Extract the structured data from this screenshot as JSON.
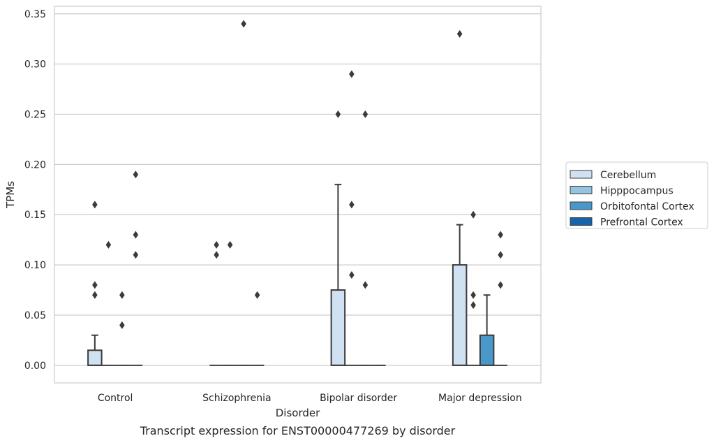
{
  "chart_data": {
    "type": "box",
    "title": "",
    "caption": "Transcript expression for ENST00000477269 by disorder",
    "xlabel": "Disorder",
    "ylabel": "TPMs",
    "ylim": [
      -0.0175,
      0.3575
    ],
    "yticks": [
      0.0,
      0.05,
      0.1,
      0.15,
      0.2,
      0.25,
      0.3,
      0.35
    ],
    "ytick_labels": [
      "0.00",
      "0.05",
      "0.10",
      "0.15",
      "0.20",
      "0.25",
      "0.30",
      "0.35"
    ],
    "grid": "horizontal",
    "legend_position": "right",
    "categories": [
      "Control",
      "Schizophrenia",
      "Bipolar disorder",
      "Major depression"
    ],
    "series": [
      {
        "name": "Cerebellum",
        "color": "#d0e1f2",
        "boxes": [
          {
            "q1": 0.0,
            "median": 0.0,
            "q3": 0.015,
            "whisker_low": 0.0,
            "whisker_high": 0.03,
            "outliers": [
              0.16,
              0.08,
              0.07
            ]
          },
          {
            "q1": 0.0,
            "median": 0.0,
            "q3": 0.0,
            "whisker_low": 0.0,
            "whisker_high": 0.0,
            "outliers": [
              0.12,
              0.11
            ]
          },
          {
            "q1": 0.0,
            "median": 0.0,
            "q3": 0.075,
            "whisker_low": 0.0,
            "whisker_high": 0.18,
            "outliers": [
              0.25
            ]
          },
          {
            "q1": 0.0,
            "median": 0.0,
            "q3": 0.1,
            "whisker_low": 0.0,
            "whisker_high": 0.14,
            "outliers": [
              0.33
            ]
          }
        ]
      },
      {
        "name": "Hipppocampus",
        "color": "#94c4df",
        "boxes": [
          {
            "q1": 0.0,
            "median": 0.0,
            "q3": 0.0,
            "whisker_low": 0.0,
            "whisker_high": 0.0,
            "outliers": [
              0.12
            ]
          },
          {
            "q1": 0.0,
            "median": 0.0,
            "q3": 0.0,
            "whisker_low": 0.0,
            "whisker_high": 0.0,
            "outliers": [
              0.12
            ]
          },
          {
            "q1": 0.0,
            "median": 0.0,
            "q3": 0.0,
            "whisker_low": 0.0,
            "whisker_high": 0.0,
            "outliers": [
              0.29,
              0.16,
              0.09
            ]
          },
          {
            "q1": 0.0,
            "median": 0.0,
            "q3": 0.0,
            "whisker_low": 0.0,
            "whisker_high": 0.0,
            "outliers": [
              0.15,
              0.07,
              0.06
            ]
          }
        ]
      },
      {
        "name": "Orbitofontal Cortex",
        "color": "#4a98c9",
        "boxes": [
          {
            "q1": 0.0,
            "median": 0.0,
            "q3": 0.0,
            "whisker_low": 0.0,
            "whisker_high": 0.0,
            "outliers": [
              0.07,
              0.04
            ]
          },
          {
            "q1": 0.0,
            "median": 0.0,
            "q3": 0.0,
            "whisker_low": 0.0,
            "whisker_high": 0.0,
            "outliers": [
              0.34
            ]
          },
          {
            "q1": 0.0,
            "median": 0.0,
            "q3": 0.0,
            "whisker_low": 0.0,
            "whisker_high": 0.0,
            "outliers": [
              0.25,
              0.08
            ]
          },
          {
            "q1": 0.0,
            "median": 0.0,
            "q3": 0.03,
            "whisker_low": 0.0,
            "whisker_high": 0.07,
            "outliers": []
          }
        ]
      },
      {
        "name": "Prefrontal Cortex",
        "color": "#1764ab",
        "boxes": [
          {
            "q1": 0.0,
            "median": 0.0,
            "q3": 0.0,
            "whisker_low": 0.0,
            "whisker_high": 0.0,
            "outliers": [
              0.19,
              0.13,
              0.11
            ]
          },
          {
            "q1": 0.0,
            "median": 0.0,
            "q3": 0.0,
            "whisker_low": 0.0,
            "whisker_high": 0.0,
            "outliers": [
              0.07
            ]
          },
          {
            "q1": 0.0,
            "median": 0.0,
            "q3": 0.0,
            "whisker_low": 0.0,
            "whisker_high": 0.0,
            "outliers": []
          },
          {
            "q1": 0.0,
            "median": 0.0,
            "q3": 0.0,
            "whisker_low": 0.0,
            "whisker_high": 0.0,
            "outliers": [
              0.13,
              0.11,
              0.08
            ]
          }
        ]
      }
    ]
  }
}
